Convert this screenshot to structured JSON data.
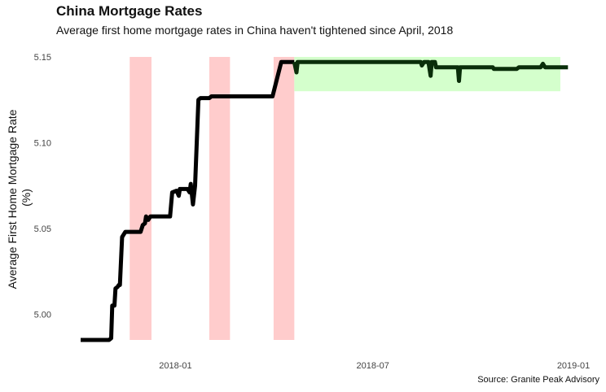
{
  "chart_data": {
    "type": "line",
    "title": "China Mortgage Rates",
    "subtitle": "Average first home mortgage rates in China haven't tightened since April, 2018",
    "ylabel_line1": "Average First Home Mortgage Rate",
    "ylabel_line2": "(%)",
    "xlabel": "",
    "source": "Source: Granite Peak Advisory",
    "ylim": [
      4.985,
      5.15
    ],
    "xlim": [
      "2017-10-06",
      "2019-01-01"
    ],
    "y_ticks": [
      {
        "value": 5.0,
        "label": "5.00"
      },
      {
        "value": 5.05,
        "label": "5.05"
      },
      {
        "value": 5.1,
        "label": "5.10"
      },
      {
        "value": 5.15,
        "label": "5.15"
      }
    ],
    "x_ticks": [
      {
        "date": "2018-01-01",
        "label": "2018-01"
      },
      {
        "date": "2018-07-01",
        "label": "2018-07"
      },
      {
        "date": "2019-01-01",
        "label": "2019-01"
      }
    ],
    "grid": false,
    "legend": "none",
    "colors": {
      "line_before": "#000000",
      "line_after": "#0a2e0a",
      "highlight_red": "#ffcccc",
      "highlight_green": "#d4ffcc"
    },
    "highlight_red": [
      {
        "start": "2017-11-20",
        "end": "2017-12-10"
      },
      {
        "start": "2018-02-01",
        "end": "2018-02-20"
      },
      {
        "start": "2018-04-01",
        "end": "2018-04-20"
      }
    ],
    "highlight_green": {
      "start": "2018-04-20",
      "end": "2018-12-20",
      "y_from": 5.13,
      "y_to": 5.15
    },
    "split_date": "2018-04-20",
    "series": [
      {
        "values": [
          [
            "2017-10-06",
            4.985
          ],
          [
            "2017-11-01",
            4.985
          ],
          [
            "2017-11-03",
            4.986
          ],
          [
            "2017-11-04",
            5.005
          ],
          [
            "2017-11-06",
            5.005
          ],
          [
            "2017-11-07",
            5.015
          ],
          [
            "2017-11-09",
            5.016
          ],
          [
            "2017-11-10",
            5.017
          ],
          [
            "2017-11-11",
            5.017
          ],
          [
            "2017-11-13",
            5.045
          ],
          [
            "2017-11-16",
            5.048
          ],
          [
            "2017-11-30",
            5.048
          ],
          [
            "2017-12-02",
            5.052
          ],
          [
            "2017-12-04",
            5.053
          ],
          [
            "2017-12-05",
            5.057
          ],
          [
            "2017-12-07",
            5.055
          ],
          [
            "2017-12-09",
            5.057
          ],
          [
            "2017-12-27",
            5.057
          ],
          [
            "2017-12-29",
            5.071
          ],
          [
            "2018-01-02",
            5.072
          ],
          [
            "2018-01-04",
            5.069
          ],
          [
            "2018-01-05",
            5.073
          ],
          [
            "2018-01-12",
            5.073
          ],
          [
            "2018-01-14",
            5.071
          ],
          [
            "2018-01-15",
            5.076
          ],
          [
            "2018-01-17",
            5.064
          ],
          [
            "2018-01-19",
            5.075
          ],
          [
            "2018-01-22",
            5.125
          ],
          [
            "2018-01-24",
            5.126
          ],
          [
            "2018-02-01",
            5.126
          ],
          [
            "2018-02-03",
            5.127
          ],
          [
            "2018-03-25",
            5.127
          ],
          [
            "2018-03-31",
            5.127
          ],
          [
            "2018-04-08",
            5.147
          ],
          [
            "2018-04-20",
            5.147
          ]
        ]
      },
      {
        "values": [
          [
            "2018-04-20",
            5.147
          ],
          [
            "2018-04-22",
            5.141
          ],
          [
            "2018-04-23",
            5.147
          ],
          [
            "2018-08-14",
            5.147
          ],
          [
            "2018-08-15",
            5.145
          ],
          [
            "2018-08-17",
            5.147
          ],
          [
            "2018-08-21",
            5.147
          ],
          [
            "2018-08-23",
            5.139
          ],
          [
            "2018-08-24",
            5.147
          ],
          [
            "2018-08-27",
            5.147
          ],
          [
            "2018-08-28",
            5.144
          ],
          [
            "2018-09-17",
            5.144
          ],
          [
            "2018-09-18",
            5.136
          ],
          [
            "2018-09-19",
            5.144
          ],
          [
            "2018-10-19",
            5.144
          ],
          [
            "2018-10-20",
            5.143
          ],
          [
            "2018-11-10",
            5.143
          ],
          [
            "2018-11-12",
            5.144
          ],
          [
            "2018-12-02",
            5.144
          ],
          [
            "2018-12-04",
            5.146
          ],
          [
            "2018-12-06",
            5.144
          ],
          [
            "2018-12-27",
            5.144
          ]
        ]
      }
    ]
  }
}
